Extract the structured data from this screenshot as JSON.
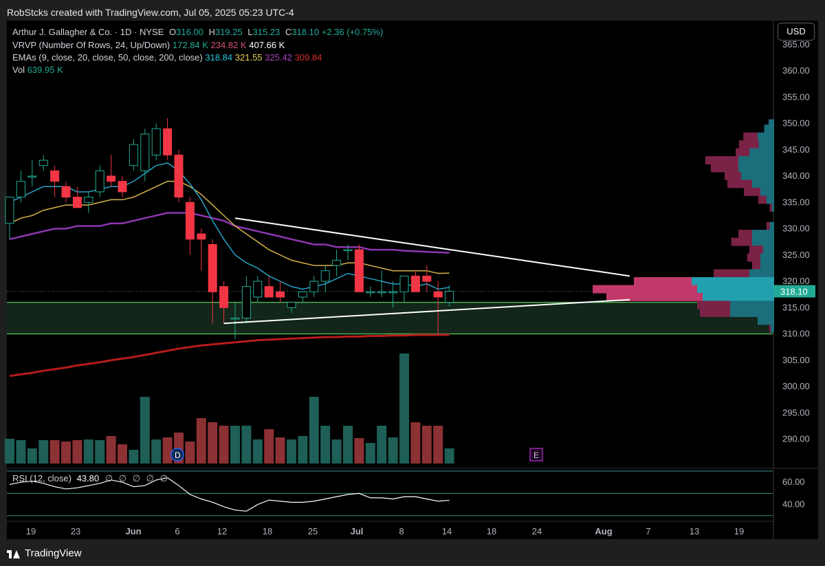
{
  "header": {
    "credit": "RobStcks created with TradingView.com, Jul 05, 2025 05:23 UTC-4"
  },
  "toolbar": {
    "currency": "USD"
  },
  "legend": {
    "symbol": "Arthur J. Gallagher & Co. · 1D · NYSE",
    "o_key": "O",
    "o": "316.00",
    "h_key": "H",
    "h": "319.25",
    "l_key": "L",
    "l": "315.23",
    "c_key": "C",
    "c": "318.10",
    "change": "+2.36 (+0.75%)",
    "vrvp_label": "VRVP (Number Of Rows, 24, Up/Down)",
    "vrvp_up": "172.84 K",
    "vrvp_down": "234.82 K",
    "vrvp_total": "407.66 K",
    "ema_label": "EMAs (9, close, 20, close, 50, close, 200, close)",
    "ema9": "318.84",
    "ema20": "321.55",
    "ema50": "325.42",
    "ema200": "309.84",
    "vol_label": "Vol",
    "vol": "639.95 K"
  },
  "rsi_legend": {
    "label": "RSI (12, close)",
    "value": "43.80",
    "na": [
      "∅",
      "∅",
      "∅",
      "∅",
      "∅"
    ]
  },
  "brand": "TradingView",
  "colors": {
    "up": "#22ab94",
    "down": "#f23645",
    "vol_up": "#1e5f57",
    "vol_down": "#8c3134",
    "ema9": "#26a3c9",
    "ema20": "#d6b44a",
    "ema50": "#8e36b0",
    "ema200": "#b71c1c",
    "zone": "#12261a",
    "zone_line": "#4caf50",
    "vp_up": "#23a0b0",
    "vp_down": "#c0396a",
    "vp_up_dim": "#1b6f7c",
    "vp_down_dim": "#7a2346"
  },
  "chart_data": {
    "type": "candlestick",
    "price_axis": {
      "ticks": [
        365,
        360,
        355,
        350,
        345,
        340,
        335,
        330,
        325,
        320,
        315,
        310,
        305,
        300,
        295,
        290
      ],
      "last_price": "318.10"
    },
    "time_axis": {
      "labels": [
        "19",
        "23",
        "Jun",
        "6",
        "12",
        "18",
        "25",
        "Jul",
        "8",
        "14",
        "18",
        "24",
        "Aug",
        "7",
        "13",
        "19"
      ]
    },
    "candles": [
      [
        331,
        336,
        328,
        336
      ],
      [
        336,
        341,
        335,
        339
      ],
      [
        340,
        343,
        338,
        340
      ],
      [
        342,
        344,
        341,
        343
      ],
      [
        341,
        342,
        336,
        339
      ],
      [
        338,
        339,
        335,
        336
      ],
      [
        336,
        338,
        334,
        334
      ],
      [
        335,
        337,
        333,
        336
      ],
      [
        337,
        342,
        336,
        341
      ],
      [
        340,
        344,
        338,
        339
      ],
      [
        339,
        340,
        336,
        337
      ],
      [
        342,
        347,
        341,
        346
      ],
      [
        341,
        349,
        339,
        348
      ],
      [
        344,
        350,
        343,
        349
      ],
      [
        349,
        351,
        343,
        344
      ],
      [
        344,
        345,
        335,
        336
      ],
      [
        335,
        336,
        325,
        328
      ],
      [
        329,
        330,
        322,
        328
      ],
      [
        327,
        328,
        312,
        318
      ],
      [
        319,
        320,
        312,
        315
      ],
      [
        313,
        316,
        309,
        313
      ],
      [
        313,
        321,
        312,
        319
      ],
      [
        317,
        321,
        316,
        320
      ],
      [
        319,
        321,
        317,
        317
      ],
      [
        318,
        320,
        316,
        317
      ],
      [
        315,
        316,
        314,
        316
      ],
      [
        317,
        318,
        316,
        318
      ],
      [
        318,
        321,
        317,
        320
      ],
      [
        320,
        323,
        318,
        322
      ],
      [
        323,
        326,
        321,
        324
      ],
      [
        326,
        327,
        324,
        326
      ],
      [
        326,
        327,
        318,
        318
      ],
      [
        318,
        319,
        317,
        318
      ],
      [
        318,
        322,
        317,
        318
      ],
      [
        318,
        320,
        315,
        318
      ],
      [
        318,
        321,
        316,
        321
      ],
      [
        321,
        322,
        318,
        318
      ],
      [
        321,
        323,
        318,
        320
      ],
      [
        318,
        320,
        310,
        317
      ],
      [
        316,
        319.25,
        315.23,
        318.1
      ]
    ],
    "volume": [
      36,
      34,
      22,
      34,
      34,
      32,
      34,
      35,
      34,
      40,
      28,
      20,
      97,
      35,
      38,
      45,
      32,
      66,
      60,
      55,
      55,
      55,
      35,
      50,
      38,
      35,
      40,
      97,
      55,
      35,
      55,
      37,
      30,
      55,
      38,
      160,
      60,
      55,
      55,
      22
    ],
    "ema9": [
      335,
      336,
      337,
      338,
      338,
      338,
      337,
      337,
      337.5,
      338,
      338,
      339,
      340.5,
      342,
      342.5,
      341,
      338.5,
      335.5,
      331.5,
      328,
      325,
      323.5,
      322.5,
      321,
      320,
      319,
      318.5,
      319,
      319.5,
      320.5,
      321.5,
      321,
      320.5,
      320,
      319.5,
      319.5,
      319,
      319.5,
      318.5,
      318.84
    ],
    "ema20": [
      331,
      332,
      332.5,
      333.5,
      334,
      334.5,
      334.5,
      334.5,
      335,
      335.5,
      335.5,
      336,
      337,
      338,
      339,
      339,
      338,
      336.5,
      334.5,
      332.5,
      330.5,
      329,
      327.5,
      326,
      325,
      324,
      323.5,
      323,
      323,
      323,
      323.5,
      323.5,
      323,
      322.5,
      322,
      322,
      322,
      322,
      321.5,
      321.55
    ],
    "ema50": [
      328,
      328.5,
      329,
      329.5,
      330,
      330,
      330.5,
      330.5,
      330.5,
      331,
      331,
      331.5,
      332,
      332.5,
      333,
      333,
      333,
      332.5,
      332,
      331.5,
      330.5,
      330,
      329.5,
      329,
      328.5,
      328,
      327.5,
      327,
      327,
      326.5,
      326.5,
      326.5,
      326,
      326,
      326,
      325.8,
      325.7,
      325.6,
      325.5,
      325.42
    ],
    "ema200": [
      302,
      302.3,
      302.6,
      303,
      303.3,
      303.6,
      304,
      304.3,
      304.6,
      305,
      305.3,
      305.6,
      306,
      306.4,
      306.8,
      307.2,
      307.5,
      307.8,
      308,
      308.2,
      308.4,
      308.6,
      308.8,
      308.9,
      309,
      309.1,
      309.2,
      309.3,
      309.4,
      309.4,
      309.5,
      309.5,
      309.6,
      309.6,
      309.7,
      309.7,
      309.8,
      309.8,
      309.8,
      309.84
    ],
    "rsi": [
      58,
      60,
      61,
      59,
      56,
      54,
      55,
      57,
      59,
      62,
      60,
      56,
      57,
      62,
      64,
      57,
      49,
      45,
      42,
      38,
      35,
      34,
      40,
      44,
      43,
      42,
      42,
      43,
      45,
      47,
      49,
      50,
      46,
      46,
      45,
      47,
      47,
      45,
      43,
      43.8
    ],
    "rsi_levels": {
      "upper": 70,
      "mid": 50,
      "lower": 30,
      "ticks": [
        60,
        40
      ]
    },
    "support_zone": [
      310,
      316
    ],
    "trendlines": [
      {
        "from": [
          20,
          332
        ],
        "to": [
          55,
          321
        ]
      },
      {
        "from": [
          19,
          312
        ],
        "to": [
          55,
          316.5
        ]
      }
    ],
    "volume_profile": [
      {
        "price": 350,
        "up": 10,
        "down": 0
      },
      {
        "price": 349,
        "up": 18,
        "down": 0
      },
      {
        "price": 347.5,
        "up": 30,
        "down": 26
      },
      {
        "price": 346,
        "up": 28,
        "down": 36
      },
      {
        "price": 344.5,
        "up": 45,
        "down": 25
      },
      {
        "price": 343,
        "up": 65,
        "down": 60
      },
      {
        "price": 341.5,
        "up": 65,
        "down": 50
      },
      {
        "price": 340,
        "up": 60,
        "down": 30
      },
      {
        "price": 338.5,
        "up": 40,
        "down": 45
      },
      {
        "price": 337,
        "up": 25,
        "down": 30
      },
      {
        "price": 335.5,
        "up": 14,
        "down": 15
      },
      {
        "price": 334,
        "up": 4,
        "down": 4
      },
      {
        "price": 330.5,
        "up": 8,
        "down": 6
      },
      {
        "price": 329,
        "up": 40,
        "down": 25
      },
      {
        "price": 327.5,
        "up": 40,
        "down": 38
      },
      {
        "price": 326,
        "up": 20,
        "down": 25
      },
      {
        "price": 324.5,
        "up": 25,
        "down": 24
      },
      {
        "price": 323,
        "up": 25,
        "down": 15
      },
      {
        "price": 321.5,
        "up": 45,
        "down": 65
      },
      {
        "price": 320,
        "up": 150,
        "down": 105
      },
      {
        "price": 318.5,
        "up": 140,
        "down": 190
      },
      {
        "price": 317,
        "up": 130,
        "down": 175
      },
      {
        "price": 315.5,
        "up": 80,
        "down": 60
      },
      {
        "price": 314,
        "up": 80,
        "down": 55
      },
      {
        "price": 312.5,
        "up": 30,
        "down": 0
      },
      {
        "price": 311,
        "up": 6,
        "down": 3
      }
    ],
    "events": [
      {
        "label": "D"
      },
      {
        "label": "E"
      }
    ]
  }
}
